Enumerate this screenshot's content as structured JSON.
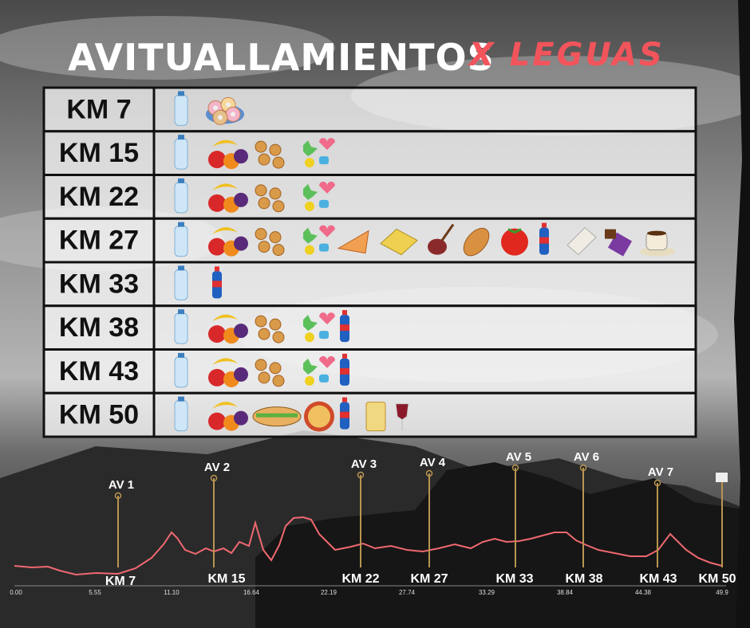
{
  "header": {
    "title": "AVITUALLAMIENTOS",
    "subtitle": "X LEGUAS"
  },
  "table": {
    "rows": [
      "KM 7",
      "KM 15",
      "KM 22",
      "KM 27",
      "KM 33",
      "KM 38",
      "KM 43",
      "KM 50"
    ]
  },
  "profile": {
    "stations": [
      {
        "label": "AV 1",
        "km": "KM 7"
      },
      {
        "label": "AV 2",
        "km": "KM 15"
      },
      {
        "label": "AV 3",
        "km": "KM 22"
      },
      {
        "label": "AV 4",
        "km": "KM 27"
      },
      {
        "label": "AV 5",
        "km": "KM 33"
      },
      {
        "label": "AV 6",
        "km": "KM 38"
      },
      {
        "label": "AV 7",
        "km": "KM 43"
      }
    ],
    "finish": "KM 50",
    "axis_labels": [
      "0.00",
      "5.55",
      "11.10",
      "16.64",
      "22.19",
      "27.74",
      "33.29",
      "38.84",
      "44.38",
      "49.9"
    ]
  }
}
